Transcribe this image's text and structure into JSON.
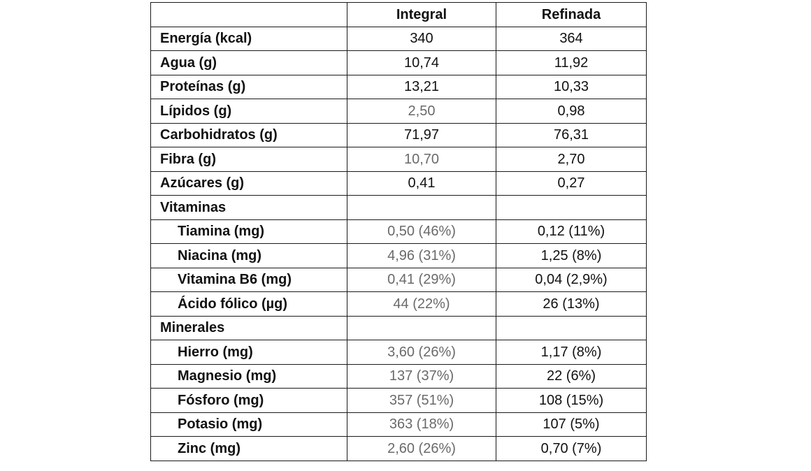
{
  "table": {
    "headers": [
      "",
      "Integral",
      "Refinada"
    ],
    "rows": [
      {
        "label": "Energía (kcal)",
        "integral": "340",
        "refinada": "364",
        "section": false,
        "sub": false
      },
      {
        "label": "Agua (g)",
        "integral": "10,74",
        "refinada": "11,92",
        "section": false,
        "sub": false
      },
      {
        "label": "Proteínas (g)",
        "integral": "13,21",
        "refinada": "10,33",
        "section": false,
        "sub": false
      },
      {
        "label": "Lípidos (g)",
        "integral": "2,50",
        "refinada": "0,98",
        "section": false,
        "sub": false
      },
      {
        "label": "Carbohidratos (g)",
        "integral": "71,97",
        "refinada": "76,31",
        "section": false,
        "sub": false
      },
      {
        "label": "Fibra (g)",
        "integral": "10,70",
        "refinada": "2,70",
        "section": false,
        "sub": false
      },
      {
        "label": "Azúcares (g)",
        "integral": "0,41",
        "refinada": "0,27",
        "section": false,
        "sub": false
      },
      {
        "label": "Vitaminas",
        "integral": "",
        "refinada": "",
        "section": true,
        "sub": false
      },
      {
        "label": "Tiamina (mg)",
        "integral": "0,50 (46%)",
        "refinada": "0,12 (11%)",
        "section": false,
        "sub": true
      },
      {
        "label": "Niacina (mg)",
        "integral": "4,96 (31%)",
        "refinada": "1,25 (8%)",
        "section": false,
        "sub": true
      },
      {
        "label": "Vitamina B6 (mg)",
        "integral": "0,41 (29%)",
        "refinada": "0,04 (2,9%)",
        "section": false,
        "sub": true
      },
      {
        "label": "Ácido fólico (µg)",
        "integral": "44 (22%)",
        "refinada": "26 (13%)",
        "section": false,
        "sub": true
      },
      {
        "label": "Minerales",
        "integral": "",
        "refinada": "",
        "section": true,
        "sub": false
      },
      {
        "label": "Hierro (mg)",
        "integral": "3,60 (26%)",
        "refinada": "1,17 (8%)",
        "section": false,
        "sub": true
      },
      {
        "label": "Magnesio (mg)",
        "integral": "137 (37%)",
        "refinada": "22 (6%)",
        "section": false,
        "sub": true
      },
      {
        "label": "Fósforo (mg)",
        "integral": "357 (51%)",
        "refinada": "108 (15%)",
        "section": false,
        "sub": true
      },
      {
        "label": "Potasio (mg)",
        "integral": "363 (18%)",
        "refinada": "107 (5%)",
        "section": false,
        "sub": true
      },
      {
        "label": "Zinc (mg)",
        "integral": "2,60 (26%)",
        "refinada": "0,70 (7%)",
        "section": false,
        "sub": true
      }
    ]
  }
}
